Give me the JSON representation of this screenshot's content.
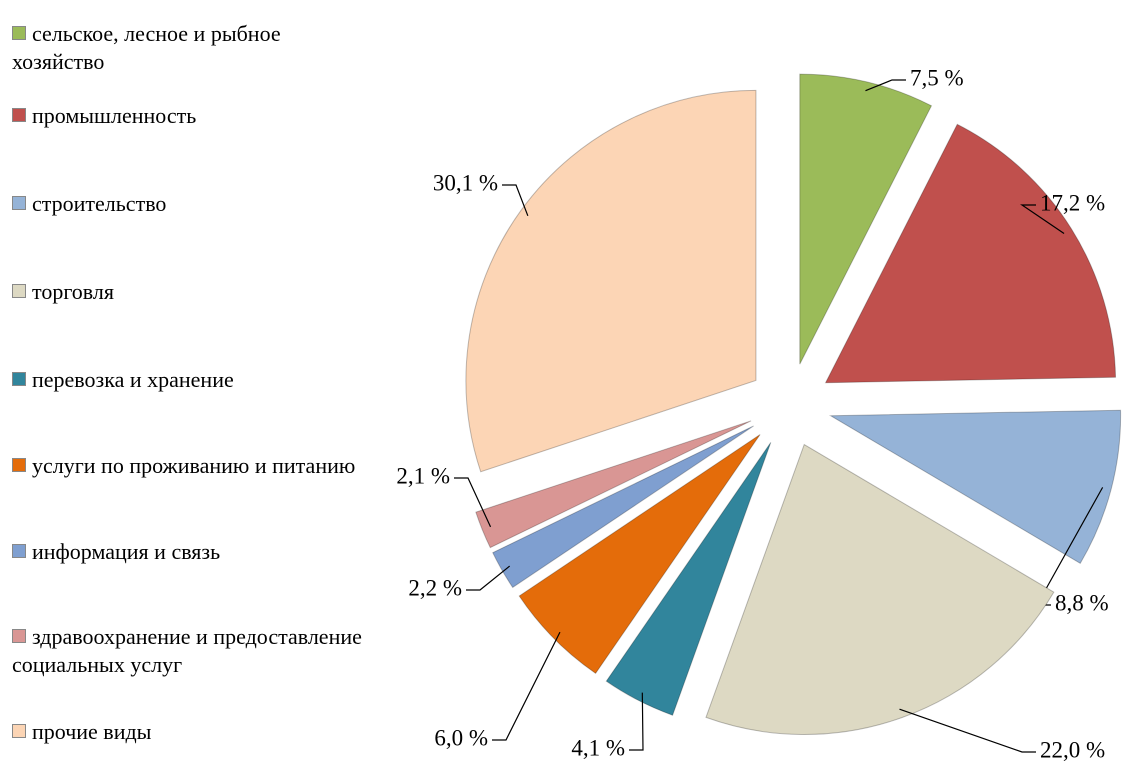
{
  "chart_data": {
    "type": "pie",
    "categories": [
      "сельское, лесное и рыбное хозяйство",
      "промышленность",
      "строительство",
      "торговля",
      "перевозка и хранение",
      "услуги по проживанию и питанию",
      "информация и связь",
      "здравоохранение и предоставление социальных услуг",
      "прочие виды"
    ],
    "values": [
      7.5,
      17.2,
      8.8,
      22.0,
      4.1,
      6.0,
      2.2,
      2.1,
      30.1
    ],
    "value_labels": [
      "7,5 %",
      "17,2 %",
      "8,8 %",
      "22,0 %",
      "4,1 %",
      "6,0 %",
      "2,2 %",
      "2,1 %",
      "30,1 %"
    ],
    "colors": [
      "#9bbb59",
      "#c0504d",
      "#95b3d7",
      "#ddd9c3",
      "#31859c",
      "#e46c0a",
      "#7f9fd0",
      "#d99694",
      "#fcd5b5"
    ],
    "legend": "left"
  }
}
